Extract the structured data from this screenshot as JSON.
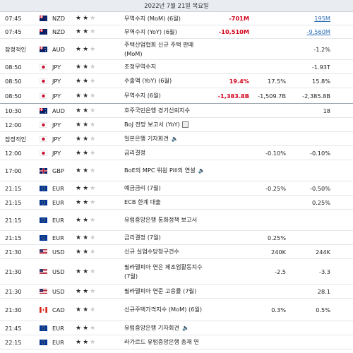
{
  "header": {
    "date": "2022년 7월 21일 목요일"
  },
  "rows": [
    {
      "time": "07:45",
      "flag": "nz-flag",
      "currency": "NZD",
      "importance": 2,
      "event": "무역수지 (MoM) (6월)",
      "actual": "-701M",
      "forecast": "",
      "previous": "195M"
    },
    {
      "time": "07:45",
      "flag": "nz-flag",
      "currency": "NZD",
      "importance": 2,
      "event": "무역수지 (YoY) (6월)",
      "actual": "-10,510M",
      "forecast": "",
      "previous": "-9,560M"
    },
    {
      "time": "잠정적인",
      "flag": "au-flag",
      "currency": "AUD",
      "importance": 2,
      "event": "주택산업협회 신규 주택 판매 (MoM)",
      "actual": "",
      "forecast": "",
      "previous": "-1.2%"
    },
    {
      "time": "08:50",
      "flag": "jp-flag",
      "currency": "JPY",
      "importance": 2,
      "event": "조정무역수지",
      "actual": "",
      "forecast": "",
      "previous": "-1.93T"
    },
    {
      "time": "08:50",
      "flag": "jp-flag",
      "currency": "JPY",
      "importance": 2,
      "event": "수출액 (YoY) (6월)",
      "actual": "19.4%",
      "forecast": "17.5%",
      "previous": "15.8%"
    },
    {
      "time": "08:50",
      "flag": "jp-flag",
      "currency": "JPY",
      "importance": 2,
      "event": "무역수지 (6월)",
      "actual": "-1,383.8B",
      "forecast": "-1,509.7B",
      "previous": "-2,385.8B"
    },
    {
      "time": "10:30",
      "flag": "au-flag",
      "currency": "AUD",
      "importance": 2,
      "event": "호주국민은행 경기신뢰지수",
      "actual": "",
      "forecast": "",
      "previous": "18"
    },
    {
      "time": "12:00",
      "flag": "jp-flag",
      "currency": "JPY",
      "importance": 2,
      "event": "BoJ 전망 보고서 (YoY)",
      "actual": "",
      "forecast": "",
      "previous": ""
    },
    {
      "time": "잠정적인",
      "flag": "jp-flag",
      "currency": "JPY",
      "importance": 2,
      "event": "일본은행 기자회견",
      "actual": "",
      "forecast": "",
      "previous": ""
    },
    {
      "time": "12:00",
      "flag": "jp-flag",
      "currency": "JPY",
      "importance": 2,
      "event": "금리결정",
      "actual": "",
      "forecast": "-0.10%",
      "previous": "-0.10%"
    },
    {
      "time": "17:00",
      "flag": "gb-flag",
      "currency": "GBP",
      "importance": 2,
      "event": "BoE의 MPC 위원 Pill의 연설",
      "actual": "",
      "forecast": "",
      "previous": ""
    },
    {
      "time": "21:15",
      "flag": "eu-flag",
      "currency": "EUR",
      "importance": 2,
      "event": "예금금리 (7월)",
      "actual": "",
      "forecast": "-0.25%",
      "previous": "-0.50%"
    },
    {
      "time": "21:15",
      "flag": "eu-flag",
      "currency": "EUR",
      "importance": 2,
      "event": "ECB 한계 대출",
      "actual": "",
      "forecast": "",
      "previous": "0.25%"
    },
    {
      "time": "21:15",
      "flag": "eu-flag",
      "currency": "EUR",
      "importance": 2,
      "event": "유럽중앙은행 통화정책 보고서",
      "actual": "",
      "forecast": "",
      "previous": ""
    },
    {
      "time": "21:15",
      "flag": "eu-flag",
      "currency": "EUR",
      "importance": 2,
      "event": "금리결정 (7월)",
      "actual": "",
      "forecast": "0.25%",
      "previous": ""
    },
    {
      "time": "21:30",
      "flag": "us-flag",
      "currency": "USD",
      "importance": 2,
      "event": "신규 실업수당청구건수",
      "actual": "",
      "forecast": "240K",
      "previous": "244K"
    },
    {
      "time": "21:30",
      "flag": "us-flag",
      "currency": "USD",
      "importance": 2,
      "event": "필라델피아 연은 제조업활동지수 (7월)",
      "actual": "",
      "forecast": "-2.5",
      "previous": "-3.3"
    },
    {
      "time": "21:30",
      "flag": "us-flag",
      "currency": "USD",
      "importance": 2,
      "event": "필라델피아 연준 고용률 (7월)",
      "actual": "",
      "forecast": "",
      "previous": "28.1"
    },
    {
      "time": "21:30",
      "flag": "ca-flag",
      "currency": "CAD",
      "importance": 2,
      "event": "신규주택가격지수 (MoM) (6월)",
      "actual": "",
      "forecast": "0.3%",
      "previous": "0.5%"
    },
    {
      "time": "21:45",
      "flag": "eu-flag",
      "currency": "EUR",
      "importance": 2,
      "event": "유럽중앙은행 기자회견",
      "actual": "",
      "forecast": "",
      "previous": ""
    },
    {
      "time": "22:15",
      "flag": "eu-flag",
      "currency": "EUR",
      "importance": 2,
      "event": "라가르드 유럽중앙은행 총재 연",
      "actual": "",
      "forecast": "",
      "previous": ""
    }
  ]
}
